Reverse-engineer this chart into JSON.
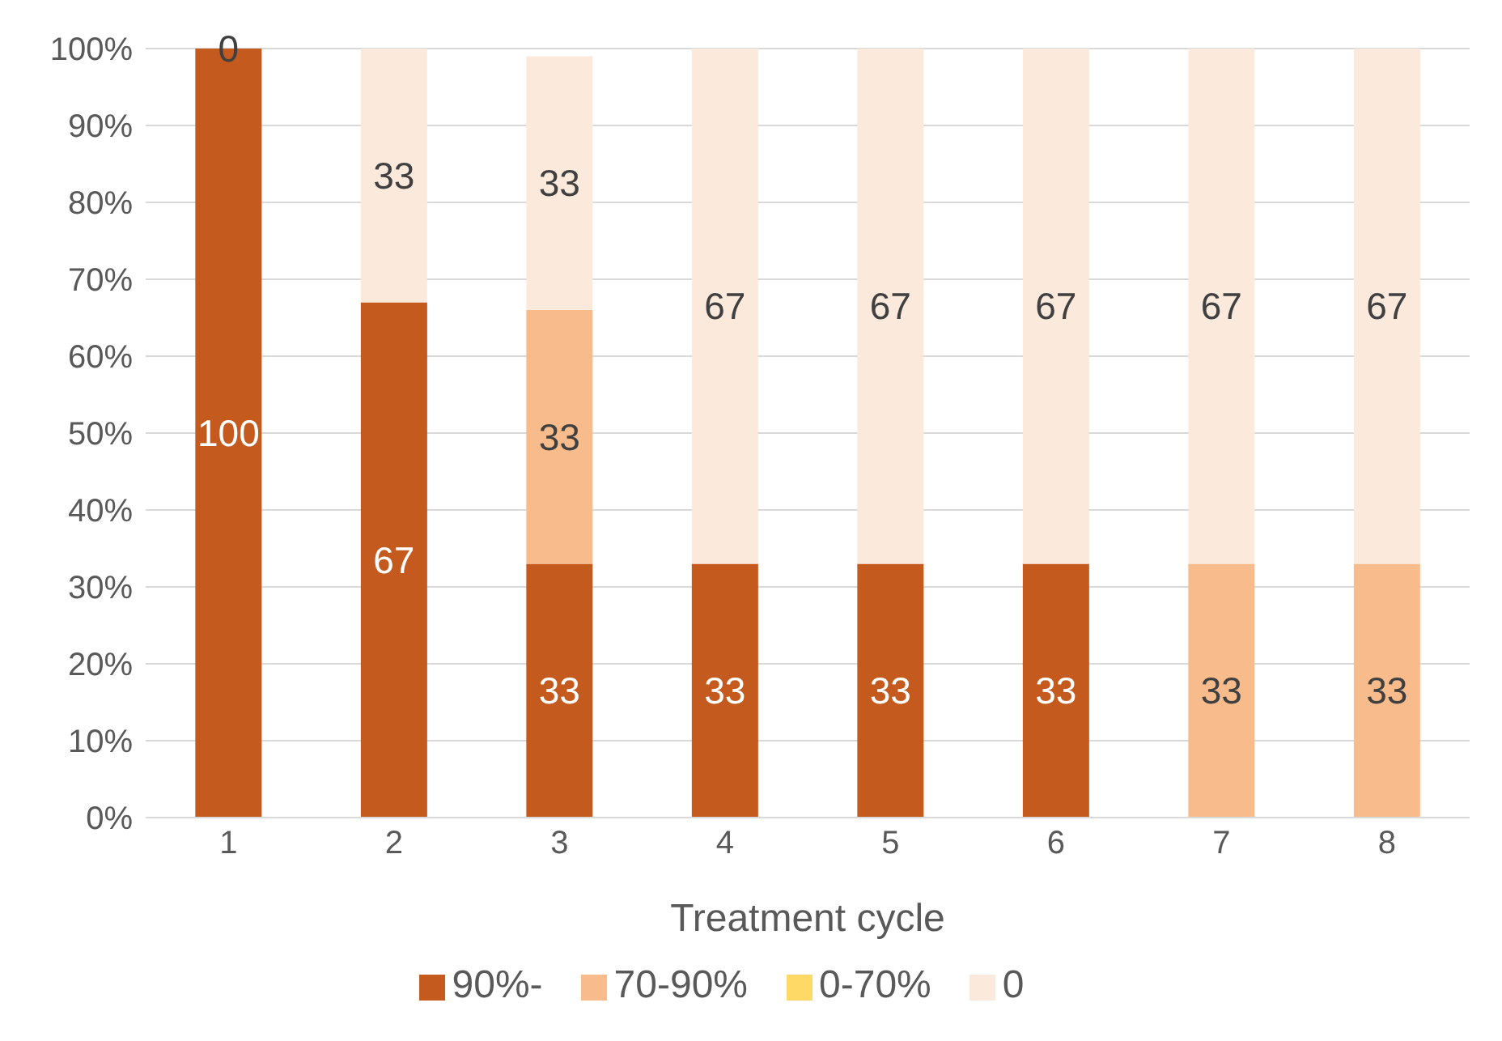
{
  "chart_data": {
    "type": "bar",
    "stacked": true,
    "xlabel": "Treatment cycle",
    "categories": [
      "1",
      "2",
      "3",
      "4",
      "5",
      "6",
      "7",
      "8"
    ],
    "series": [
      {
        "name": "90%-",
        "color": "#c55a1e",
        "values": [
          100,
          67,
          33,
          33,
          33,
          33,
          0,
          0
        ],
        "value_labels": [
          "100",
          "67",
          "33",
          "33",
          "33",
          "33",
          null,
          null
        ]
      },
      {
        "name": "70-90%",
        "color": "#f8bb8c",
        "values": [
          0,
          0,
          33,
          0,
          0,
          0,
          33,
          33
        ],
        "value_labels": [
          null,
          null,
          "33",
          null,
          null,
          null,
          "33",
          "33"
        ]
      },
      {
        "name": "0-70%",
        "color": "#ffd966",
        "values": [
          0,
          0,
          0,
          0,
          0,
          0,
          0,
          0
        ]
      },
      {
        "name": "0",
        "color": "#fbe9dc",
        "values": [
          0,
          33,
          33,
          67,
          67,
          67,
          67,
          67
        ],
        "value_labels": [
          "0",
          "33",
          "33",
          "67",
          "67",
          "67",
          "67",
          "67"
        ]
      }
    ],
    "ylim": [
      0,
      100
    ],
    "yticks": [
      {
        "value": 0,
        "label": "0%"
      },
      {
        "value": 10,
        "label": "10%"
      },
      {
        "value": 20,
        "label": "20%"
      },
      {
        "value": 30,
        "label": "30%"
      },
      {
        "value": 40,
        "label": "40%"
      },
      {
        "value": 50,
        "label": "50%"
      },
      {
        "value": 60,
        "label": "60%"
      },
      {
        "value": 70,
        "label": "70%"
      },
      {
        "value": 80,
        "label": "80%"
      },
      {
        "value": 90,
        "label": "90%"
      },
      {
        "value": 100,
        "label": "100%"
      }
    ],
    "grid": "y",
    "legend": "bottom"
  }
}
